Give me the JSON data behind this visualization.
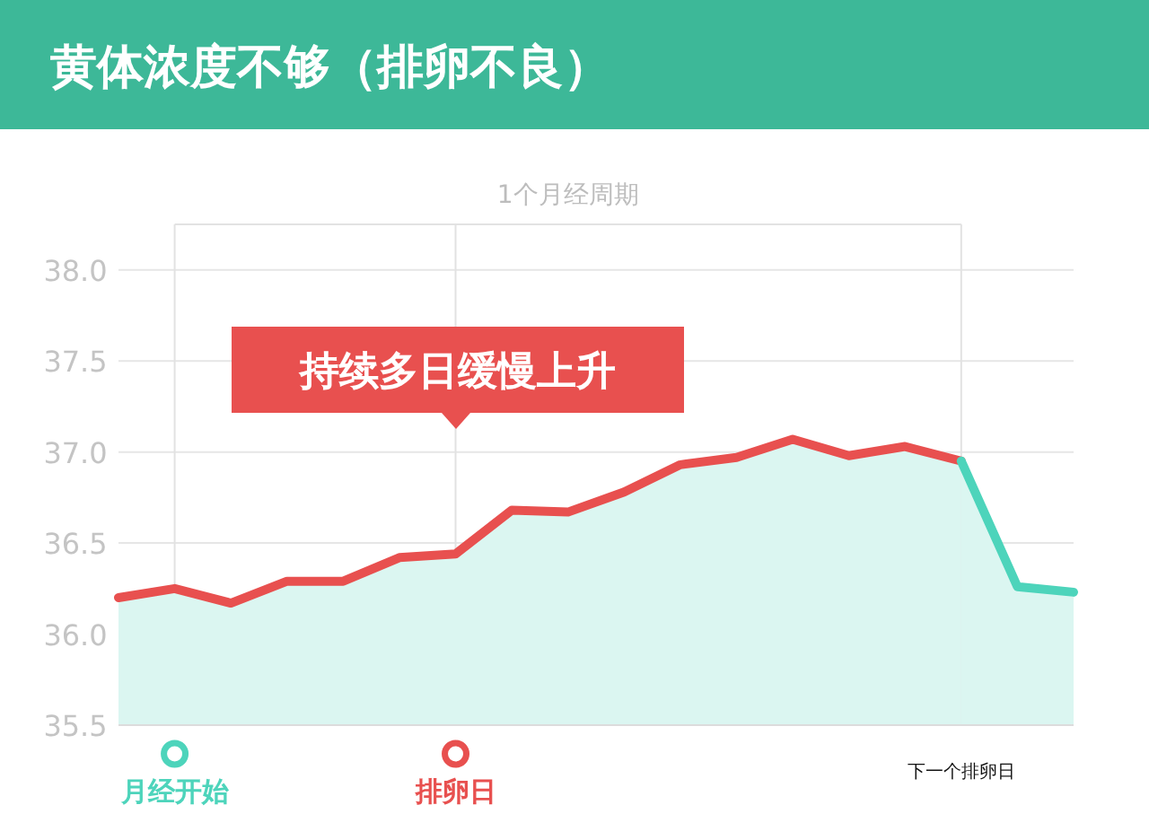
{
  "chart_data": {
    "type": "area",
    "title": "黄体浓度不够（排卵不良）",
    "subtitle": "1个月经周期",
    "categories": [
      null,
      "月经开始",
      null,
      null,
      null,
      null,
      "排卵日",
      null,
      null,
      null,
      null,
      null,
      null,
      null,
      null,
      "下一个排卵日",
      null,
      null
    ],
    "series": [
      {
        "color": "#e8504f",
        "values": [
          36.2,
          36.25,
          36.17,
          36.29,
          36.29,
          36.42,
          36.44,
          36.68,
          36.67,
          36.78,
          36.93,
          36.97,
          37.07,
          36.98,
          37.03,
          36.95,
          null,
          null
        ]
      },
      {
        "color": "#4dd4bb",
        "values": [
          null,
          null,
          null,
          null,
          null,
          null,
          null,
          null,
          null,
          null,
          null,
          null,
          null,
          null,
          null,
          36.95,
          36.26,
          36.23
        ]
      }
    ],
    "ylim": [
      35.5,
      38.25
    ],
    "yticks": [
      {
        "value": 35.5,
        "label": "35.5"
      },
      {
        "value": 36,
        "label": "36.0"
      },
      {
        "value": 36.5,
        "label": "36.5"
      },
      {
        "value": 37,
        "label": "37.0"
      },
      {
        "value": 37.5,
        "label": "37.5"
      },
      {
        "value": 38,
        "label": "38.0"
      }
    ],
    "grid": true,
    "annotations": [
      "持续多日缓慢上升"
    ]
  }
}
